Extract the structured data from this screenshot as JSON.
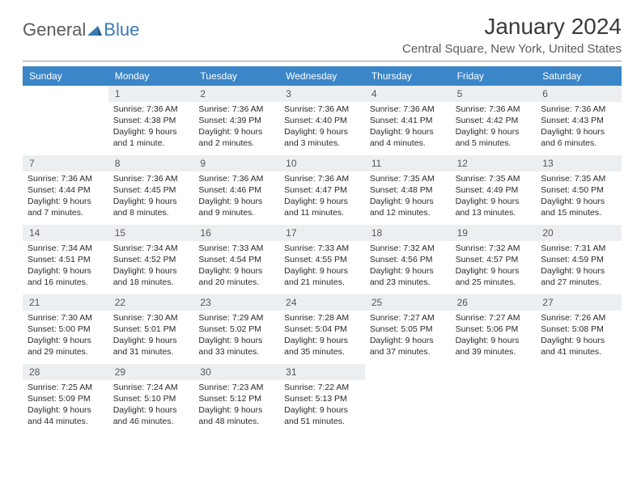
{
  "logo": {
    "general": "General",
    "blue": "Blue"
  },
  "title": "January 2024",
  "location": "Central Square, New York, United States",
  "colors": {
    "header_bg": "#3a86c8",
    "daynum_bg": "#eceff1",
    "logo_gray": "#5a5a5a",
    "logo_blue": "#3a7ab8"
  },
  "weekdays": [
    "Sunday",
    "Monday",
    "Tuesday",
    "Wednesday",
    "Thursday",
    "Friday",
    "Saturday"
  ],
  "weeks": [
    [
      null,
      {
        "n": "1",
        "sr": "Sunrise: 7:36 AM",
        "ss": "Sunset: 4:38 PM",
        "d1": "Daylight: 9 hours",
        "d2": "and 1 minute."
      },
      {
        "n": "2",
        "sr": "Sunrise: 7:36 AM",
        "ss": "Sunset: 4:39 PM",
        "d1": "Daylight: 9 hours",
        "d2": "and 2 minutes."
      },
      {
        "n": "3",
        "sr": "Sunrise: 7:36 AM",
        "ss": "Sunset: 4:40 PM",
        "d1": "Daylight: 9 hours",
        "d2": "and 3 minutes."
      },
      {
        "n": "4",
        "sr": "Sunrise: 7:36 AM",
        "ss": "Sunset: 4:41 PM",
        "d1": "Daylight: 9 hours",
        "d2": "and 4 minutes."
      },
      {
        "n": "5",
        "sr": "Sunrise: 7:36 AM",
        "ss": "Sunset: 4:42 PM",
        "d1": "Daylight: 9 hours",
        "d2": "and 5 minutes."
      },
      {
        "n": "6",
        "sr": "Sunrise: 7:36 AM",
        "ss": "Sunset: 4:43 PM",
        "d1": "Daylight: 9 hours",
        "d2": "and 6 minutes."
      }
    ],
    [
      {
        "n": "7",
        "sr": "Sunrise: 7:36 AM",
        "ss": "Sunset: 4:44 PM",
        "d1": "Daylight: 9 hours",
        "d2": "and 7 minutes."
      },
      {
        "n": "8",
        "sr": "Sunrise: 7:36 AM",
        "ss": "Sunset: 4:45 PM",
        "d1": "Daylight: 9 hours",
        "d2": "and 8 minutes."
      },
      {
        "n": "9",
        "sr": "Sunrise: 7:36 AM",
        "ss": "Sunset: 4:46 PM",
        "d1": "Daylight: 9 hours",
        "d2": "and 9 minutes."
      },
      {
        "n": "10",
        "sr": "Sunrise: 7:36 AM",
        "ss": "Sunset: 4:47 PM",
        "d1": "Daylight: 9 hours",
        "d2": "and 11 minutes."
      },
      {
        "n": "11",
        "sr": "Sunrise: 7:35 AM",
        "ss": "Sunset: 4:48 PM",
        "d1": "Daylight: 9 hours",
        "d2": "and 12 minutes."
      },
      {
        "n": "12",
        "sr": "Sunrise: 7:35 AM",
        "ss": "Sunset: 4:49 PM",
        "d1": "Daylight: 9 hours",
        "d2": "and 13 minutes."
      },
      {
        "n": "13",
        "sr": "Sunrise: 7:35 AM",
        "ss": "Sunset: 4:50 PM",
        "d1": "Daylight: 9 hours",
        "d2": "and 15 minutes."
      }
    ],
    [
      {
        "n": "14",
        "sr": "Sunrise: 7:34 AM",
        "ss": "Sunset: 4:51 PM",
        "d1": "Daylight: 9 hours",
        "d2": "and 16 minutes."
      },
      {
        "n": "15",
        "sr": "Sunrise: 7:34 AM",
        "ss": "Sunset: 4:52 PM",
        "d1": "Daylight: 9 hours",
        "d2": "and 18 minutes."
      },
      {
        "n": "16",
        "sr": "Sunrise: 7:33 AM",
        "ss": "Sunset: 4:54 PM",
        "d1": "Daylight: 9 hours",
        "d2": "and 20 minutes."
      },
      {
        "n": "17",
        "sr": "Sunrise: 7:33 AM",
        "ss": "Sunset: 4:55 PM",
        "d1": "Daylight: 9 hours",
        "d2": "and 21 minutes."
      },
      {
        "n": "18",
        "sr": "Sunrise: 7:32 AM",
        "ss": "Sunset: 4:56 PM",
        "d1": "Daylight: 9 hours",
        "d2": "and 23 minutes."
      },
      {
        "n": "19",
        "sr": "Sunrise: 7:32 AM",
        "ss": "Sunset: 4:57 PM",
        "d1": "Daylight: 9 hours",
        "d2": "and 25 minutes."
      },
      {
        "n": "20",
        "sr": "Sunrise: 7:31 AM",
        "ss": "Sunset: 4:59 PM",
        "d1": "Daylight: 9 hours",
        "d2": "and 27 minutes."
      }
    ],
    [
      {
        "n": "21",
        "sr": "Sunrise: 7:30 AM",
        "ss": "Sunset: 5:00 PM",
        "d1": "Daylight: 9 hours",
        "d2": "and 29 minutes."
      },
      {
        "n": "22",
        "sr": "Sunrise: 7:30 AM",
        "ss": "Sunset: 5:01 PM",
        "d1": "Daylight: 9 hours",
        "d2": "and 31 minutes."
      },
      {
        "n": "23",
        "sr": "Sunrise: 7:29 AM",
        "ss": "Sunset: 5:02 PM",
        "d1": "Daylight: 9 hours",
        "d2": "and 33 minutes."
      },
      {
        "n": "24",
        "sr": "Sunrise: 7:28 AM",
        "ss": "Sunset: 5:04 PM",
        "d1": "Daylight: 9 hours",
        "d2": "and 35 minutes."
      },
      {
        "n": "25",
        "sr": "Sunrise: 7:27 AM",
        "ss": "Sunset: 5:05 PM",
        "d1": "Daylight: 9 hours",
        "d2": "and 37 minutes."
      },
      {
        "n": "26",
        "sr": "Sunrise: 7:27 AM",
        "ss": "Sunset: 5:06 PM",
        "d1": "Daylight: 9 hours",
        "d2": "and 39 minutes."
      },
      {
        "n": "27",
        "sr": "Sunrise: 7:26 AM",
        "ss": "Sunset: 5:08 PM",
        "d1": "Daylight: 9 hours",
        "d2": "and 41 minutes."
      }
    ],
    [
      {
        "n": "28",
        "sr": "Sunrise: 7:25 AM",
        "ss": "Sunset: 5:09 PM",
        "d1": "Daylight: 9 hours",
        "d2": "and 44 minutes."
      },
      {
        "n": "29",
        "sr": "Sunrise: 7:24 AM",
        "ss": "Sunset: 5:10 PM",
        "d1": "Daylight: 9 hours",
        "d2": "and 46 minutes."
      },
      {
        "n": "30",
        "sr": "Sunrise: 7:23 AM",
        "ss": "Sunset: 5:12 PM",
        "d1": "Daylight: 9 hours",
        "d2": "and 48 minutes."
      },
      {
        "n": "31",
        "sr": "Sunrise: 7:22 AM",
        "ss": "Sunset: 5:13 PM",
        "d1": "Daylight: 9 hours",
        "d2": "and 51 minutes."
      },
      null,
      null,
      null
    ]
  ]
}
